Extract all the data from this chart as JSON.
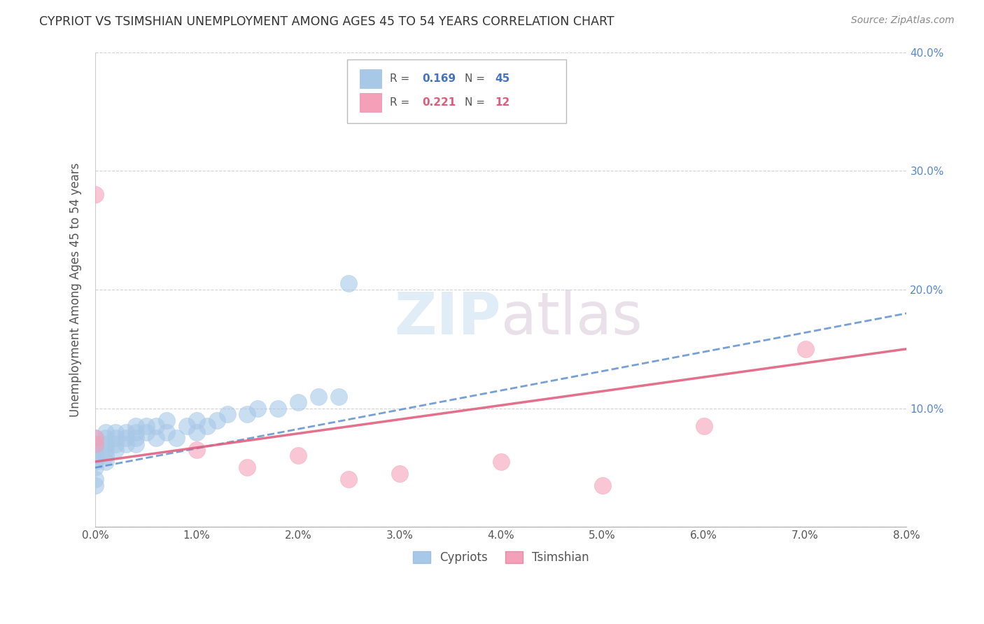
{
  "title": "CYPRIOT VS TSIMSHIAN UNEMPLOYMENT AMONG AGES 45 TO 54 YEARS CORRELATION CHART",
  "source": "Source: ZipAtlas.com",
  "ylabel": "Unemployment Among Ages 45 to 54 years",
  "xlim": [
    0.0,
    0.08
  ],
  "ylim": [
    0.0,
    0.4
  ],
  "xticks": [
    0.0,
    0.01,
    0.02,
    0.03,
    0.04,
    0.05,
    0.06,
    0.07,
    0.08
  ],
  "yticks": [
    0.0,
    0.1,
    0.2,
    0.3,
    0.4
  ],
  "xtick_labels": [
    "0.0%",
    "1.0%",
    "2.0%",
    "3.0%",
    "4.0%",
    "5.0%",
    "6.0%",
    "7.0%",
    "8.0%"
  ],
  "right_ytick_labels": [
    "",
    "10.0%",
    "20.0%",
    "30.0%",
    "40.0%"
  ],
  "background_color": "#ffffff",
  "cypriot_color": "#a8c8e8",
  "tsimshian_color": "#f4a0b8",
  "cypriot_line_color": "#5588cc",
  "tsimshian_line_color": "#e06080",
  "cypriot_R": 0.169,
  "cypriot_N": 45,
  "tsimshian_R": 0.221,
  "tsimshian_N": 12,
  "cypriot_x": [
    0.0,
    0.0,
    0.0,
    0.0,
    0.0,
    0.0,
    0.0,
    0.0,
    0.001,
    0.001,
    0.001,
    0.001,
    0.001,
    0.001,
    0.002,
    0.002,
    0.002,
    0.002,
    0.003,
    0.003,
    0.003,
    0.004,
    0.004,
    0.004,
    0.004,
    0.005,
    0.005,
    0.006,
    0.006,
    0.007,
    0.007,
    0.008,
    0.009,
    0.01,
    0.011,
    0.012,
    0.013,
    0.015,
    0.016,
    0.018,
    0.02,
    0.022,
    0.024,
    0.025,
    0.01
  ],
  "cypriot_y": [
    0.05,
    0.055,
    0.06,
    0.065,
    0.07,
    0.075,
    0.04,
    0.035,
    0.06,
    0.07,
    0.075,
    0.08,
    0.055,
    0.065,
    0.065,
    0.07,
    0.08,
    0.075,
    0.07,
    0.075,
    0.08,
    0.07,
    0.075,
    0.08,
    0.085,
    0.08,
    0.085,
    0.075,
    0.085,
    0.08,
    0.09,
    0.075,
    0.085,
    0.09,
    0.085,
    0.09,
    0.095,
    0.095,
    0.1,
    0.1,
    0.105,
    0.11,
    0.11,
    0.205,
    0.08
  ],
  "tsimshian_x": [
    0.0,
    0.0,
    0.0,
    0.01,
    0.015,
    0.02,
    0.025,
    0.03,
    0.04,
    0.05,
    0.06,
    0.07
  ],
  "tsimshian_y": [
    0.07,
    0.075,
    0.28,
    0.065,
    0.05,
    0.06,
    0.04,
    0.045,
    0.055,
    0.035,
    0.085,
    0.15
  ]
}
